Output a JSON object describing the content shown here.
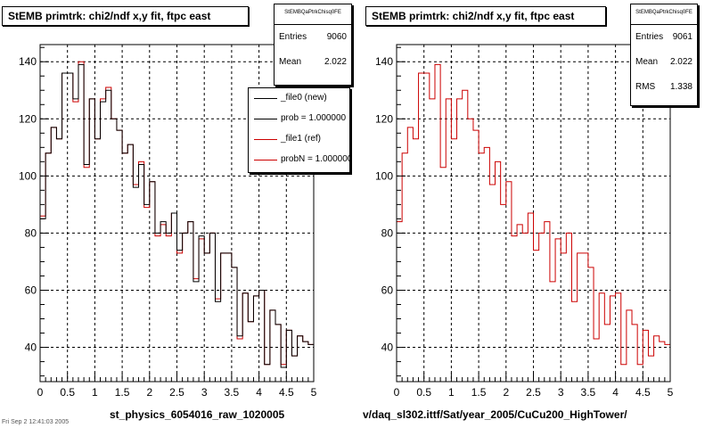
{
  "panels": [
    {
      "title": "StEMB primtrk: chi2/ndf x,y fit, ftpc east",
      "caption": "st_physics_6054016_raw_1020005",
      "stats": {
        "name": "StEMBQaPtrkChisq0FE",
        "rows": [
          {
            "label": "Entries",
            "value": "9060"
          },
          {
            "label": "Mean",
            "value": "2.022"
          }
        ]
      },
      "legend": [
        {
          "label": "_file0 (new)",
          "color": "#000000"
        },
        {
          "label": "prob = 1.000000",
          "color": "#000000"
        },
        {
          "label": "_file1 (ref)",
          "color": "#cc0000"
        },
        {
          "label": "probN = 1.000000",
          "color": "#cc0000"
        }
      ]
    },
    {
      "title": "StEMB primtrk: chi2/ndf x,y fit, ftpc east",
      "caption": "v/daq_sl302.ittf/Sat/year_2005/CuCu200_HighTower/",
      "stats": {
        "name": "StEMBQaPtrkChisq0FE",
        "rows": [
          {
            "label": "Entries",
            "value": "9061"
          },
          {
            "label": "Mean",
            "value": "2.022"
          },
          {
            "label": "RMS",
            "value": "1.338"
          }
        ]
      },
      "legend": []
    }
  ],
  "footer": "Fri Sep 2 12:41:03 2005",
  "colors": {
    "new_hist": "#000000",
    "ref_hist": "#cc0000",
    "grid": "#000000",
    "background": "#ffffff"
  },
  "chart_data": [
    {
      "type": "line",
      "style": "step-histogram",
      "title": "StEMB primtrk: chi2/ndf x,y fit, ftpc east",
      "xlabel": "",
      "ylabel": "",
      "xlim": [
        0,
        5
      ],
      "ylim": [
        28,
        146
      ],
      "xticks": [
        0,
        0.5,
        1,
        1.5,
        2,
        2.5,
        3,
        3.5,
        4,
        4.5,
        5
      ],
      "xticklabels": [
        "0",
        "0.5",
        "1",
        "1.5",
        "2",
        "2.5",
        "3",
        "3.5",
        "4",
        "4.5",
        "5"
      ],
      "yticks": [
        40,
        60,
        80,
        100,
        120,
        140
      ],
      "yticklabels": [
        "40",
        "60",
        "80",
        "100",
        "120",
        "140"
      ],
      "grid": true,
      "legend_position": "top-right",
      "bin_edges": [
        0,
        0.1,
        0.2,
        0.3,
        0.4,
        0.5,
        0.6,
        0.7,
        0.8,
        0.9,
        1.0,
        1.1,
        1.2,
        1.3,
        1.4,
        1.5,
        1.6,
        1.7,
        1.8,
        1.9,
        2.0,
        2.1,
        2.2,
        2.3,
        2.4,
        2.5,
        2.6,
        2.7,
        2.8,
        2.9,
        3.0,
        3.1,
        3.2,
        3.3,
        3.4,
        3.5,
        3.6,
        3.7,
        3.8,
        3.9,
        4.0,
        4.1,
        4.2,
        4.3,
        4.4,
        4.5,
        4.6,
        4.7,
        4.8,
        4.9,
        5.0
      ],
      "series": [
        {
          "name": "_file1 (ref)",
          "color": "#cc0000",
          "values": [
            86,
            108,
            117,
            113,
            136,
            136,
            126,
            140,
            103,
            127,
            113,
            127,
            131,
            120,
            116,
            108,
            111,
            97,
            105,
            89,
            98,
            79,
            83,
            79,
            87,
            73,
            80,
            84,
            64,
            78,
            73,
            80,
            57,
            73,
            73,
            68,
            43,
            59,
            49,
            58,
            60,
            34,
            53,
            48,
            34,
            46,
            37,
            44,
            42,
            41
          ]
        },
        {
          "name": "_file0 (new)",
          "color": "#000000",
          "values": [
            85,
            108,
            117,
            113,
            136,
            136,
            127,
            139,
            104,
            127,
            113,
            126,
            130,
            120,
            116,
            108,
            111,
            96,
            104,
            90,
            98,
            80,
            84,
            80,
            87,
            74,
            80,
            84,
            63,
            79,
            73,
            80,
            56,
            73,
            73,
            68,
            44,
            59,
            49,
            58,
            60,
            34,
            53,
            48,
            33,
            46,
            37,
            44,
            42,
            41
          ]
        }
      ]
    },
    {
      "type": "line",
      "style": "step-histogram",
      "title": "StEMB primtrk: chi2/ndf x,y fit, ftpc east",
      "xlabel": "",
      "ylabel": "",
      "xlim": [
        0,
        5
      ],
      "ylim": [
        28,
        146
      ],
      "xticks": [
        0,
        0.5,
        1,
        1.5,
        2,
        2.5,
        3,
        3.5,
        4,
        4.5,
        5
      ],
      "xticklabels": [
        "0",
        "0.5",
        "1",
        "1.5",
        "2",
        "2.5",
        "3",
        "3.5",
        "4",
        "4.5",
        "5"
      ],
      "yticks": [
        40,
        60,
        80,
        100,
        120,
        140
      ],
      "yticklabels": [
        "40",
        "60",
        "80",
        "100",
        "120",
        "140"
      ],
      "grid": true,
      "legend_position": "none",
      "bin_edges": [
        0,
        0.1,
        0.2,
        0.3,
        0.4,
        0.5,
        0.6,
        0.7,
        0.8,
        0.9,
        1.0,
        1.1,
        1.2,
        1.3,
        1.4,
        1.5,
        1.6,
        1.7,
        1.8,
        1.9,
        2.0,
        2.1,
        2.2,
        2.3,
        2.4,
        2.5,
        2.6,
        2.7,
        2.8,
        2.9,
        3.0,
        3.1,
        3.2,
        3.3,
        3.4,
        3.5,
        3.6,
        3.7,
        3.8,
        3.9,
        4.0,
        4.1,
        4.2,
        4.3,
        4.4,
        4.5,
        4.6,
        4.7,
        4.8,
        4.9,
        5.0
      ],
      "series": [
        {
          "name": "",
          "color": "#cc0000",
          "values": [
            84,
            108,
            117,
            113,
            136,
            136,
            127,
            139,
            103,
            127,
            113,
            127,
            130,
            120,
            116,
            108,
            110,
            97,
            105,
            90,
            98,
            79,
            83,
            80,
            87,
            74,
            80,
            84,
            63,
            78,
            73,
            80,
            56,
            73,
            73,
            68,
            43,
            59,
            48,
            58,
            59,
            34,
            53,
            48,
            34,
            46,
            37,
            44,
            42,
            41
          ]
        }
      ]
    }
  ]
}
